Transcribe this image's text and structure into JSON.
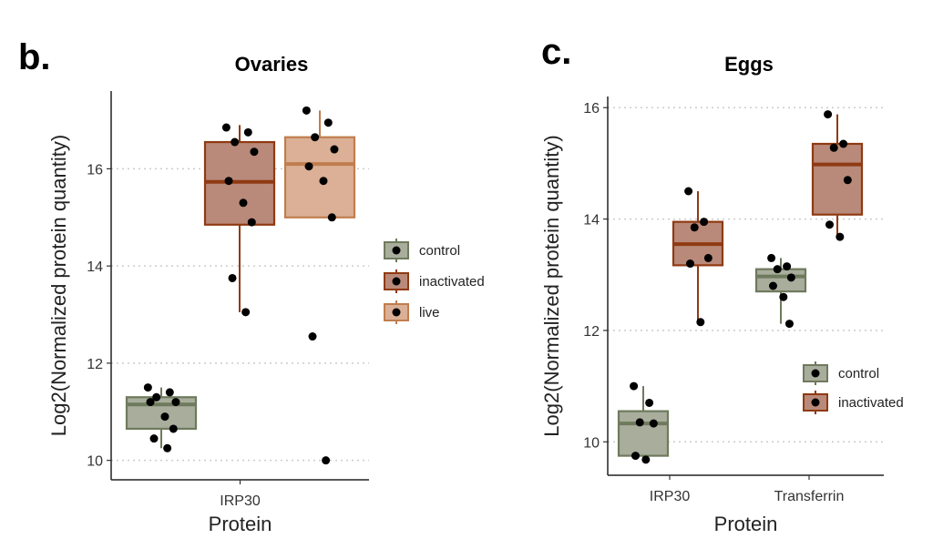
{
  "panel_letters": [
    "b.",
    "c."
  ],
  "colors": {
    "control": {
      "fill": "#a9ad9c",
      "stroke": "#6e7a5d"
    },
    "inactivated": {
      "fill": "#b98a7a",
      "stroke": "#8f3a12"
    },
    "live": {
      "fill": "#dbb096",
      "stroke": "#c07d4e"
    },
    "point": "#000000",
    "grid": "#cccccc"
  },
  "chart_data": [
    {
      "type": "box",
      "title": "Ovaries",
      "xlabel": "Protein",
      "ylabel": "Log2(Normalized protein quantity)",
      "ylim": [
        9.6,
        17.6
      ],
      "yticks": [
        "10",
        "12",
        "14",
        "16"
      ],
      "grid": "horizontal dotted",
      "legend_position": "right",
      "categories": [
        "IRP30"
      ],
      "series": [
        {
          "name": "control",
          "boxes": [
            {
              "category": "IRP30",
              "q1": 10.65,
              "median": 11.15,
              "q3": 11.3,
              "whisker_low": 10.25,
              "whisker_high": 11.5,
              "points": [
                11.5,
                11.4,
                11.3,
                11.2,
                11.2,
                10.9,
                10.65,
                10.45,
                10.25
              ]
            }
          ]
        },
        {
          "name": "inactivated",
          "boxes": [
            {
              "category": "IRP30",
              "q1": 14.85,
              "median": 15.73,
              "q3": 16.55,
              "whisker_low": 13.05,
              "whisker_high": 16.9,
              "points": [
                16.85,
                16.75,
                16.55,
                16.35,
                15.75,
                15.3,
                14.9,
                13.75,
                13.05
              ]
            }
          ]
        },
        {
          "name": "live",
          "boxes": [
            {
              "category": "IRP30",
              "q1": 15.0,
              "median": 16.1,
              "q3": 16.65,
              "whisker_low": 15.0,
              "whisker_high": 17.2,
              "points": [
                17.2,
                16.95,
                16.65,
                16.4,
                16.05,
                15.75,
                15.0,
                12.55,
                10.0
              ]
            }
          ]
        }
      ]
    },
    {
      "type": "box",
      "title": "Eggs",
      "xlabel": "Protein",
      "ylabel": "Log2(Normalized protein quantity)",
      "ylim": [
        9.4,
        16.2
      ],
      "yticks": [
        "10",
        "12",
        "14",
        "16"
      ],
      "grid": "horizontal dotted",
      "legend_position": "right",
      "categories": [
        "IRP30",
        "Transferrin"
      ],
      "series": [
        {
          "name": "control",
          "boxes": [
            {
              "category": "IRP30",
              "q1": 9.75,
              "median": 10.33,
              "q3": 10.55,
              "whisker_low": 9.68,
              "whisker_high": 11.0,
              "points": [
                11.0,
                10.7,
                10.35,
                10.33,
                9.75,
                9.68
              ]
            },
            {
              "category": "Transferrin",
              "q1": 12.7,
              "median": 12.97,
              "q3": 13.1,
              "whisker_low": 12.12,
              "whisker_high": 13.3,
              "points": [
                13.3,
                13.15,
                13.1,
                12.95,
                12.8,
                12.6,
                12.12
              ]
            }
          ]
        },
        {
          "name": "inactivated",
          "boxes": [
            {
              "category": "IRP30",
              "q1": 13.17,
              "median": 13.55,
              "q3": 13.95,
              "whisker_low": 12.15,
              "whisker_high": 14.5,
              "points": [
                14.5,
                13.95,
                13.85,
                13.3,
                13.2,
                12.15
              ]
            },
            {
              "category": "Transferrin",
              "q1": 14.08,
              "median": 14.98,
              "q3": 15.35,
              "whisker_low": 13.68,
              "whisker_high": 15.88,
              "points": [
                15.88,
                15.35,
                15.28,
                14.7,
                13.9,
                13.68
              ]
            }
          ]
        }
      ]
    }
  ]
}
